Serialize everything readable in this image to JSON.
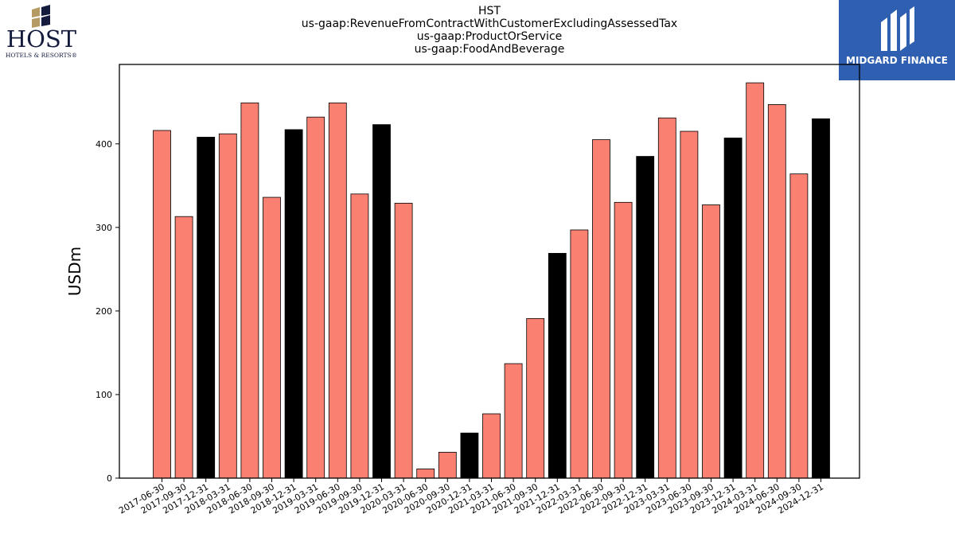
{
  "header": {
    "title_lines": [
      "HST",
      "us-gaap:RevenueFromContractWithCustomerExcludingAssessedTax",
      "us-gaap:ProductOrService",
      "us-gaap:FoodAndBeverage"
    ]
  },
  "logos": {
    "host": {
      "wordmark": "HOST",
      "subline": "HOTELS & RESORTS®",
      "color": "#141b3d",
      "accent": "#b59a63"
    },
    "midgard": {
      "name": "MIDGARD FINANCE",
      "background": "#2f5fb0"
    }
  },
  "colors": {
    "quarter_bar": "#fa8072",
    "year_end_bar": "#000000",
    "bar_edge": "#000000"
  },
  "chart_data": {
    "type": "bar",
    "title": "HST\nus-gaap:RevenueFromContractWithCustomerExcludingAssessedTax\nus-gaap:ProductOrService\nus-gaap:FoodAndBeverage",
    "xlabel": "",
    "ylabel": "USDm",
    "ylim": [
      0,
      495
    ],
    "yticks": [
      0,
      100,
      200,
      300,
      400
    ],
    "grid": false,
    "categories": [
      "2017-06-30",
      "2017-09-30",
      "2017-12-31",
      "2018-03-31",
      "2018-06-30",
      "2018-09-30",
      "2018-12-31",
      "2019-03-31",
      "2019-06-30",
      "2019-09-30",
      "2019-12-31",
      "2020-03-31",
      "2020-06-30",
      "2020-09-30",
      "2020-12-31",
      "2021-03-31",
      "2021-06-30",
      "2021-09-30",
      "2021-12-31",
      "2022-03-31",
      "2022-06-30",
      "2022-09-30",
      "2022-12-31",
      "2023-03-31",
      "2023-06-30",
      "2023-09-30",
      "2023-12-31",
      "2024-03-31",
      "2024-06-30",
      "2024-09-30",
      "2024-12-31"
    ],
    "values": [
      416,
      313,
      408,
      412,
      449,
      336,
      417,
      432,
      449,
      340,
      423,
      329,
      11,
      31,
      54,
      77,
      137,
      191,
      269,
      297,
      405,
      330,
      385,
      431,
      415,
      327,
      407,
      473,
      447,
      364,
      430
    ]
  }
}
